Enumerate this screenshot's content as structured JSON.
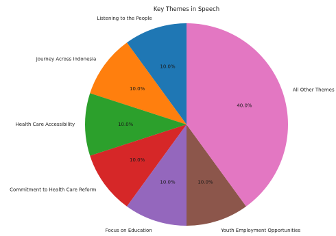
{
  "chart_data": {
    "type": "pie",
    "title": "Key Themes in Speech",
    "labels": [
      "Listening to the People",
      "Journey Across Indonesia",
      "Health Care Accessibility",
      "Commitment to Health Care Reform",
      "Focus on Education",
      "Youth Employment Opportunities",
      "All Other Themes"
    ],
    "values": [
      10,
      10,
      10,
      10,
      10,
      10,
      40
    ],
    "value_labels": [
      "10.0%",
      "10.0%",
      "10.0%",
      "10.0%",
      "10.0%",
      "10.0%",
      "40.0%"
    ],
    "colors": [
      "#1f77b4",
      "#ff7f0e",
      "#2ca02c",
      "#d62728",
      "#9467bd",
      "#8c564b",
      "#e377c2"
    ],
    "start_angle_deg": 90,
    "direction": "counterclockwise"
  }
}
